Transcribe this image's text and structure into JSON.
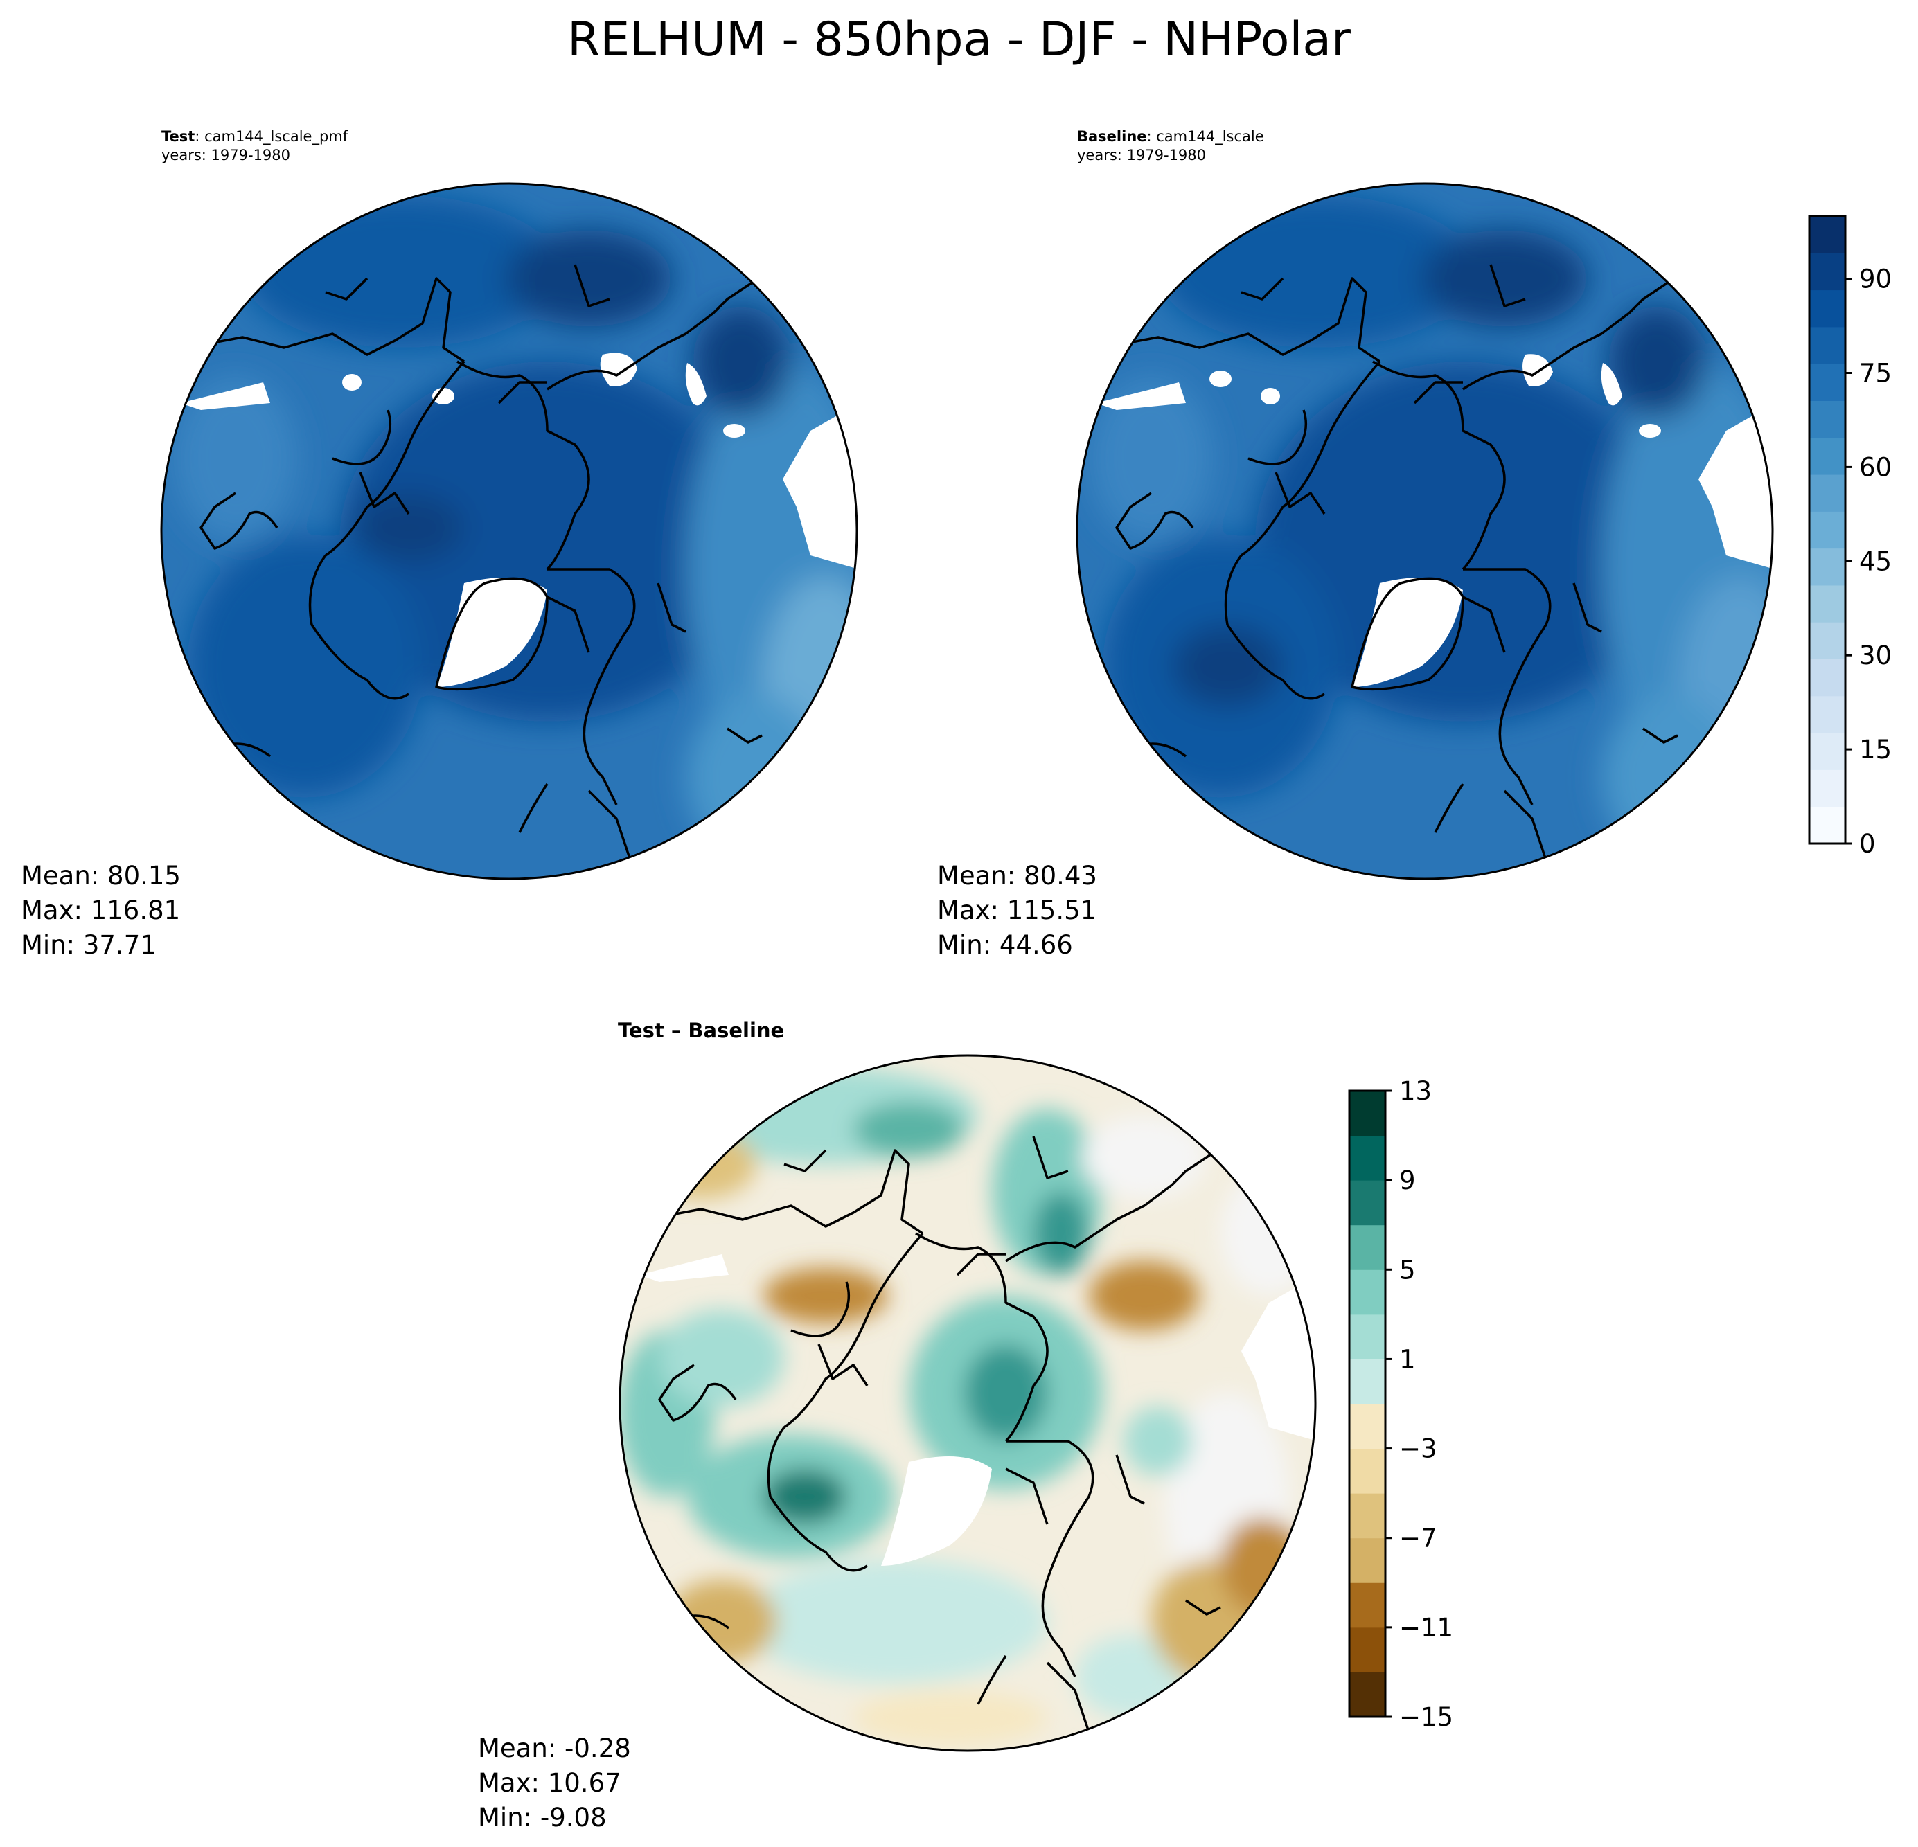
{
  "title": "RELHUM - 850hpa - DJF - NHPolar",
  "panels": [
    {
      "id": "test",
      "heading_bold": "Test",
      "heading_rest": ": cam144_lscale_pmf",
      "years": "years: 1979-1980",
      "stats": {
        "mean": "Mean: 80.15",
        "max": "Max: 116.81",
        "min": "Min: 37.71"
      }
    },
    {
      "id": "baseline",
      "heading_bold": "Baseline",
      "heading_rest": ": cam144_lscale",
      "years": "years: 1979-1980",
      "stats": {
        "mean": "Mean: 80.43",
        "max": "Max: 115.51",
        "min": "Min: 44.66"
      }
    },
    {
      "id": "diff",
      "heading_bold": "Test – Baseline",
      "heading_rest": "",
      "years": "",
      "stats": {
        "mean": "Mean: -0.28",
        "max": "Max: 10.67",
        "min": "Min: -9.08"
      }
    }
  ],
  "colorbars": {
    "main": {
      "ticks": [
        "0",
        "15",
        "30",
        "45",
        "60",
        "75",
        "90"
      ],
      "colors": [
        "#f7fbff",
        "#eaf2fb",
        "#deebf7",
        "#d2e3f3",
        "#c6dbef",
        "#b3d3e8",
        "#9ecae1",
        "#85bcdc",
        "#6baed6",
        "#5aa1cf",
        "#4292c6",
        "#3282be",
        "#2171b5",
        "#1461a8",
        "#08519c",
        "#084084",
        "#08306b"
      ]
    },
    "diff": {
      "ticks": [
        "13",
        "9",
        "5",
        "1",
        "−3",
        "−7",
        "−11",
        "−15"
      ],
      "colors": [
        "#543005",
        "#8c510a",
        "#a76b1c",
        "#bf812d",
        "#d4b166",
        "#dfc27d",
        "#f0dba6",
        "#f6e8c3",
        "#f5f5f5",
        "#c7eae5",
        "#a4ddd4",
        "#80cdc1",
        "#5ab4a5",
        "#35978f",
        "#1a7a70",
        "#01665e",
        "#003c30"
      ]
    }
  },
  "chart_data": [
    {
      "type": "heatmap",
      "title": "RELHUM - 850hpa - DJF - NHPolar",
      "subplot": "Test: cam144_lscale_pmf",
      "years": "1979-1980",
      "projection": "north polar stereographic",
      "colormap": "Blues",
      "levels_range": [
        0,
        100
      ],
      "colorbar_ticks": [
        0,
        15,
        30,
        45,
        60,
        75,
        90
      ],
      "mean": 80.15,
      "max": 116.81,
      "min": 37.71
    },
    {
      "type": "heatmap",
      "subplot": "Baseline: cam144_lscale",
      "years": "1979-1980",
      "projection": "north polar stereographic",
      "colormap": "Blues",
      "levels_range": [
        0,
        100
      ],
      "colorbar_ticks": [
        0,
        15,
        30,
        45,
        60,
        75,
        90
      ],
      "mean": 80.43,
      "max": 115.51,
      "min": 44.66
    },
    {
      "type": "heatmap",
      "subplot": "Test - Baseline",
      "projection": "north polar stereographic",
      "colormap": "BrBG",
      "levels_range": [
        -15,
        13
      ],
      "colorbar_ticks": [
        -15,
        -11,
        -7,
        -3,
        1,
        5,
        9,
        13
      ],
      "mean": -0.28,
      "max": 10.67,
      "min": -9.08
    }
  ]
}
